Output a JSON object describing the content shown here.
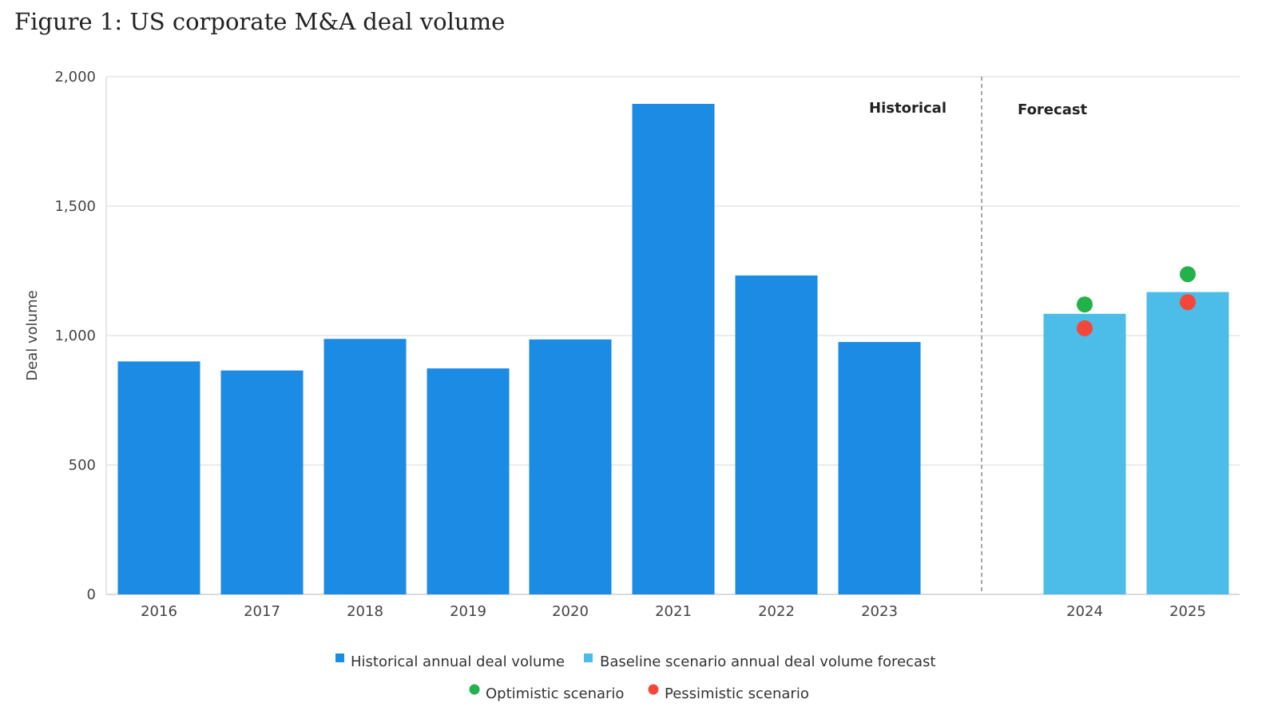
{
  "title": "Figure 1: US corporate M&A deal volume",
  "chart_data": {
    "type": "bar",
    "ylabel": "Deal volume",
    "xlabel": "",
    "ylim": [
      0,
      2000
    ],
    "yticks": [
      0,
      500,
      1000,
      1500,
      2000
    ],
    "ytick_labels": [
      "0",
      "500",
      "1,000",
      "1,500",
      "2,000"
    ],
    "grid": true,
    "categories": [
      "2016",
      "2017",
      "2018",
      "2019",
      "2020",
      "2021",
      "2022",
      "2023",
      "2024",
      "2025"
    ],
    "section_labels": {
      "historical": "Historical",
      "forecast": "Forecast"
    },
    "series": [
      {
        "name": "Historical annual deal volume",
        "color": "#1b8be4",
        "x": [
          "2016",
          "2017",
          "2018",
          "2019",
          "2020",
          "2021",
          "2022",
          "2023"
        ],
        "values": [
          900,
          865,
          987,
          873,
          985,
          1895,
          1232,
          975
        ]
      },
      {
        "name": "Baseline scenario annual deal volume forecast",
        "color": "#4cbce9",
        "x": [
          "2024",
          "2025"
        ],
        "values": [
          1084,
          1168
        ]
      }
    ],
    "points": [
      {
        "name": "Optimistic scenario",
        "color": "#22b24c",
        "x": [
          "2024",
          "2025"
        ],
        "values": [
          1120,
          1237
        ]
      },
      {
        "name": "Pessimistic scenario",
        "color": "#f4473a",
        "x": [
          "2024",
          "2025"
        ],
        "values": [
          1028,
          1129
        ]
      }
    ],
    "legend_position": "bottom"
  }
}
